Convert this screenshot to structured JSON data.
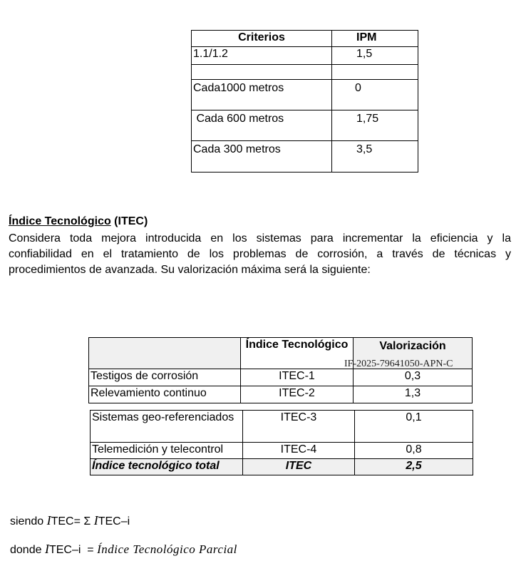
{
  "table_ipm": {
    "headers": [
      "Criterios",
      "IPM"
    ],
    "rows": [
      [
        "1.1/1.2",
        "1,5"
      ],
      [
        "",
        ""
      ],
      [
        "Cada1000 metros",
        "0"
      ],
      [
        " Cada 600 metros",
        "1,75"
      ],
      [
        "Cada 300 metros",
        "3,5"
      ]
    ]
  },
  "section": {
    "title": "Índice Tecnológico",
    "title_suffix": "(ITEC)",
    "lines": [
      "Considera toda mejora introducida en los sistemas para incrementar la eficiencia y la",
      "confiabilidad en el tratamiento de los problemas de corrosión, a través de técnicas y",
      "procedimientos de avanzada. Su valorización máxima será la siguiente:"
    ]
  },
  "table_itec": {
    "headers": [
      "",
      "Índice Tecnológico",
      "Valorización"
    ],
    "rows_a": [
      [
        "Testigos de corrosión",
        "ITEC-1",
        "0,3"
      ],
      [
        "Relevamiento continuo",
        "ITEC-2",
        "1,3"
      ]
    ],
    "rows_b": [
      [
        "Sistemas geo-referenciados",
        "ITEC-3",
        "0,1"
      ],
      [
        "Telemedición y telecontrol",
        "ITEC-4",
        "0,8"
      ]
    ],
    "total": [
      "Índice tecnológico total",
      "ITEC",
      "2,5"
    ]
  },
  "watermark": "IF-2025-79641050-APN-C",
  "formulas": {
    "line1_prefix": "siendo",
    "line1_i": "I",
    "line1_a": "TEC= Σ ",
    "line1_i2": "I",
    "line1_b": "TEC–i",
    "line2_prefix": "donde",
    "line2_i": "I",
    "line2_a": "TEC–i  = ",
    "line2_b": "Índice Tecnológico Parcial"
  }
}
